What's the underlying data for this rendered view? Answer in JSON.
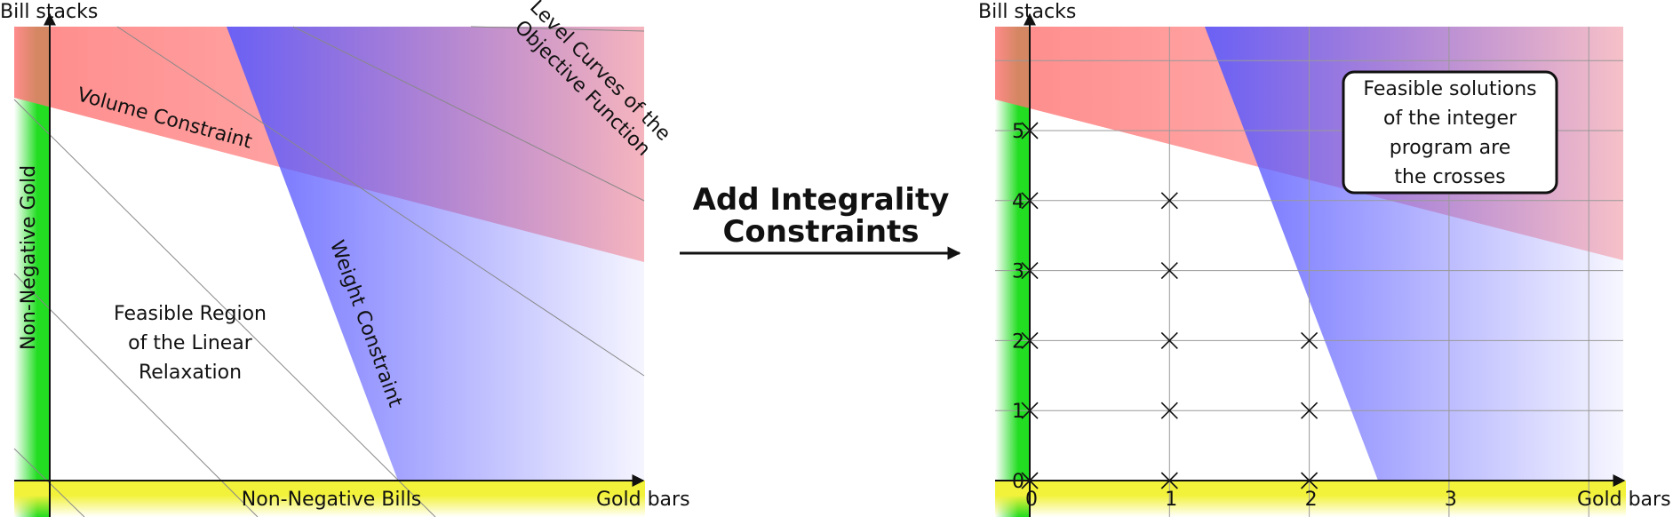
{
  "left_panel": {
    "y_axis_label": "Bill stacks",
    "x_axis_label": "Gold bars",
    "labels": {
      "volume": "Volume Constraint",
      "weight": "Weight Constraint",
      "non_negative_gold": "Non-Negative Gold",
      "non_negative_bills": "Non-Negative Bills",
      "level_curves": [
        "Level Curves of the",
        "Objective Function"
      ],
      "feasible_region": [
        "Feasible Region",
        "of the Linear",
        "Relaxation"
      ]
    }
  },
  "arrow": {
    "label": [
      "Add Integrality",
      "Constraints"
    ]
  },
  "right_panel": {
    "y_axis_label": "Bill stacks",
    "x_axis_label": "Gold bars",
    "x_ticks": [
      "0",
      "1",
      "2",
      "3"
    ],
    "y_ticks": [
      "0",
      "1",
      "2",
      "3",
      "4",
      "5"
    ],
    "callout": [
      "Feasible solutions",
      "of the integer",
      "program are",
      "the crosses"
    ],
    "integer_points": [
      [
        0,
        0
      ],
      [
        0,
        1
      ],
      [
        0,
        2
      ],
      [
        0,
        3
      ],
      [
        0,
        4
      ],
      [
        0,
        5
      ],
      [
        1,
        0
      ],
      [
        1,
        1
      ],
      [
        1,
        2
      ],
      [
        1,
        3
      ],
      [
        1,
        4
      ],
      [
        2,
        0
      ],
      [
        2,
        1
      ],
      [
        2,
        2
      ]
    ]
  },
  "colors": {
    "red": "#ff6b6b",
    "blue": "#5a5aff",
    "purple": "#7a4fd6",
    "green": "#22dd22",
    "yellow": "#f2f23a",
    "grid": "#999999"
  }
}
